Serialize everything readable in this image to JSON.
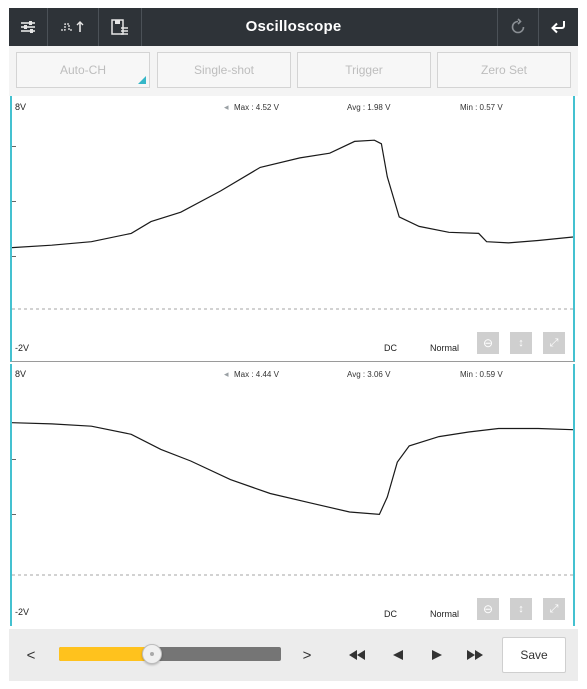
{
  "app": {
    "title": "Oscilloscope"
  },
  "toolbar": {
    "left_icons": [
      "settings-sliders-icon",
      "waveform-trigger-icon",
      "save-list-icon"
    ],
    "right_icons": [
      "refresh-icon",
      "back-arrow-icon"
    ]
  },
  "modes": [
    {
      "label": "Auto-CH",
      "selected": true
    },
    {
      "label": "Single-shot"
    },
    {
      "label": "Trigger"
    },
    {
      "label": "Zero Set"
    }
  ],
  "channels": [
    {
      "top_label": "8V",
      "bottom_label": "-2V",
      "max": "Max : 4.52 V",
      "avg": "Avg : 1.98 V",
      "min": "Min : 0.57 V",
      "coupling": "DC",
      "mode": "Normal",
      "trace": [
        [
          0,
          2.0
        ],
        [
          40,
          2.1
        ],
        [
          80,
          2.25
        ],
        [
          120,
          2.6
        ],
        [
          140,
          3.1
        ],
        [
          170,
          3.5
        ],
        [
          210,
          4.4
        ],
        [
          250,
          5.4
        ],
        [
          290,
          5.8
        ],
        [
          320,
          6.0
        ],
        [
          345,
          6.5
        ],
        [
          365,
          6.55
        ],
        [
          372,
          6.4
        ],
        [
          378,
          5.0
        ],
        [
          390,
          3.3
        ],
        [
          410,
          2.9
        ],
        [
          440,
          2.65
        ],
        [
          470,
          2.6
        ],
        [
          478,
          2.25
        ],
        [
          500,
          2.2
        ],
        [
          530,
          2.3
        ],
        [
          565,
          2.45
        ]
      ]
    },
    {
      "top_label": "8V",
      "bottom_label": "-2V",
      "max": "Max : 4.44 V",
      "avg": "Avg : 3.06 V",
      "min": "Min : 0.59 V",
      "coupling": "DC",
      "mode": "Normal",
      "trace": [
        [
          0,
          5.9
        ],
        [
          40,
          5.85
        ],
        [
          80,
          5.75
        ],
        [
          120,
          5.4
        ],
        [
          150,
          4.75
        ],
        [
          180,
          4.25
        ],
        [
          220,
          3.45
        ],
        [
          260,
          2.85
        ],
        [
          300,
          2.45
        ],
        [
          340,
          2.05
        ],
        [
          370,
          1.95
        ],
        [
          378,
          2.7
        ],
        [
          388,
          4.2
        ],
        [
          400,
          4.9
        ],
        [
          430,
          5.3
        ],
        [
          460,
          5.5
        ],
        [
          490,
          5.65
        ],
        [
          530,
          5.65
        ],
        [
          565,
          5.6
        ]
      ]
    }
  ],
  "bottom": {
    "prev_label": "<",
    "next_label": ">",
    "slider_progress": 0.42,
    "save_label": "Save"
  },
  "colors": {
    "titlebar": "#2e3338",
    "accent": "#44c1d0",
    "slider": "#ffc21d"
  }
}
